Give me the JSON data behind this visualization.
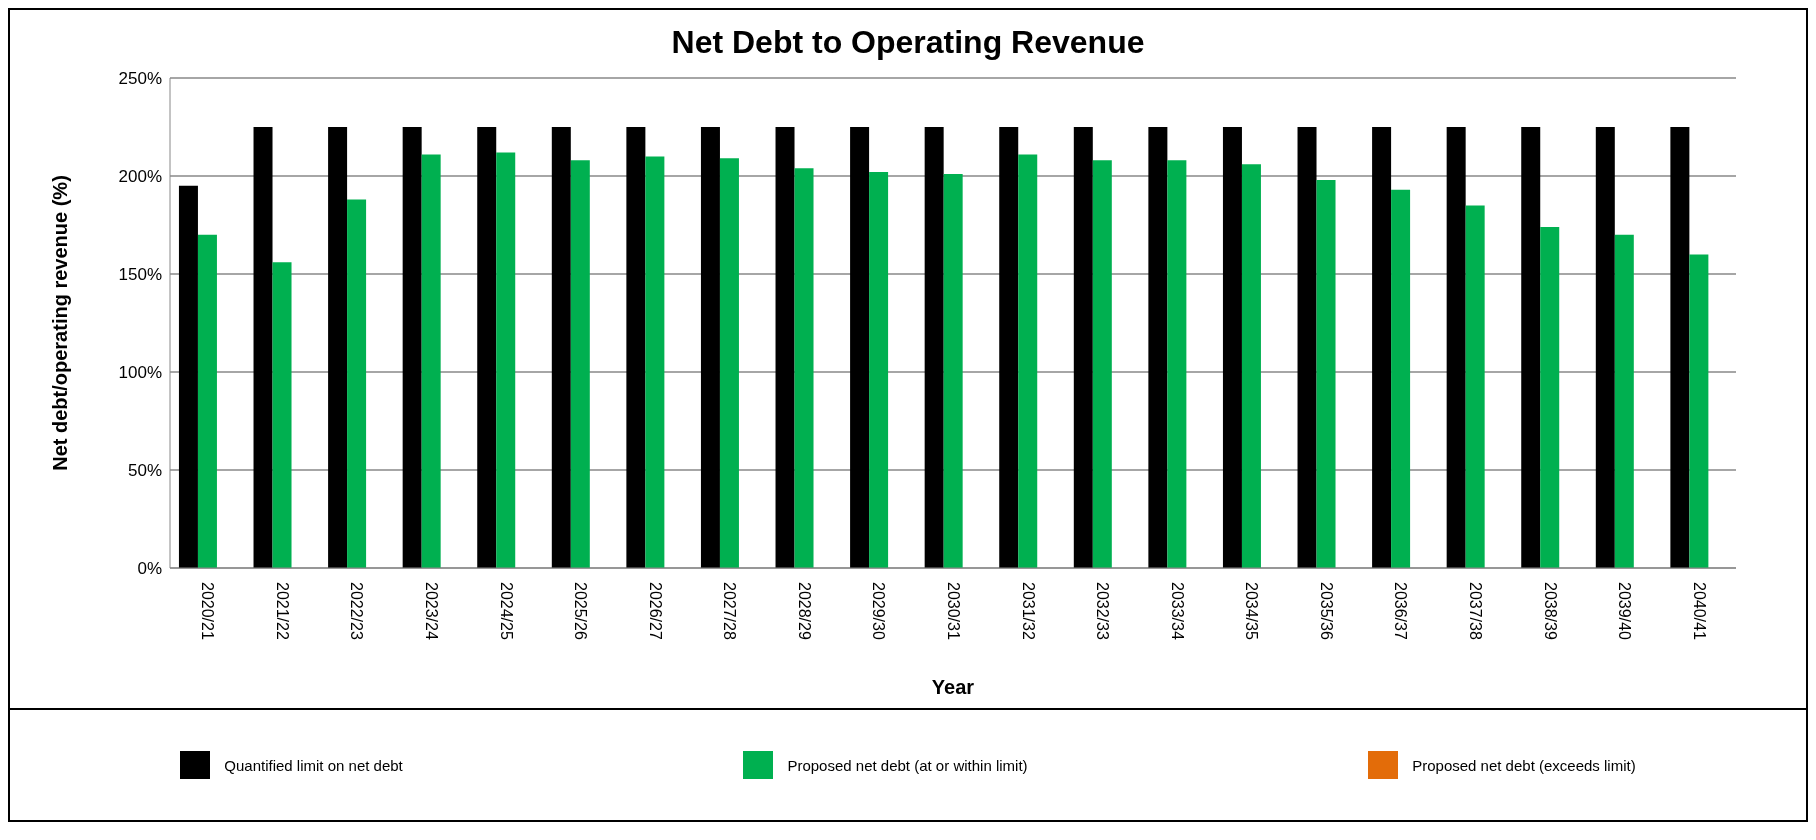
{
  "chart_data": {
    "type": "bar",
    "title": "Net Debt to Operating Revenue",
    "xlabel": "Year",
    "ylabel": "Net debt/operating revenue (%)",
    "categories": [
      "2020/21",
      "2021/22",
      "2022/23",
      "2023/24",
      "2024/25",
      "2025/26",
      "2026/27",
      "2027/28",
      "2028/29",
      "2029/30",
      "2030/31",
      "2031/32",
      "2032/33",
      "2033/34",
      "2034/35",
      "2035/36",
      "2036/37",
      "2037/38",
      "2038/39",
      "2039/40",
      "2040/41"
    ],
    "series": [
      {
        "name": "Quantified limit on net debt",
        "color": "#000000",
        "values": [
          195,
          225,
          225,
          225,
          225,
          225,
          225,
          225,
          225,
          225,
          225,
          225,
          225,
          225,
          225,
          225,
          225,
          225,
          225,
          225,
          225
        ]
      },
      {
        "name": "Proposed net debt (at or within limit)",
        "color": "#00b050",
        "values": [
          170,
          156,
          188,
          211,
          212,
          208,
          210,
          209,
          204,
          202,
          201,
          211,
          208,
          208,
          206,
          198,
          193,
          185,
          174,
          170,
          160
        ]
      },
      {
        "name": "Proposed net debt (exceeds limit)",
        "color": "#e36c09",
        "values": [
          null,
          null,
          null,
          null,
          null,
          null,
          null,
          null,
          null,
          null,
          null,
          null,
          null,
          null,
          null,
          null,
          null,
          null,
          null,
          null,
          null
        ]
      }
    ],
    "ylim": [
      0,
      250
    ],
    "yticks": [
      {
        "value": 0,
        "label": "0%"
      },
      {
        "value": 50,
        "label": "50%"
      },
      {
        "value": 100,
        "label": "100%"
      },
      {
        "value": 150,
        "label": "150%"
      },
      {
        "value": 200,
        "label": "200%"
      },
      {
        "value": 250,
        "label": "250%"
      }
    ],
    "grid": "y",
    "legend": "bottom"
  }
}
